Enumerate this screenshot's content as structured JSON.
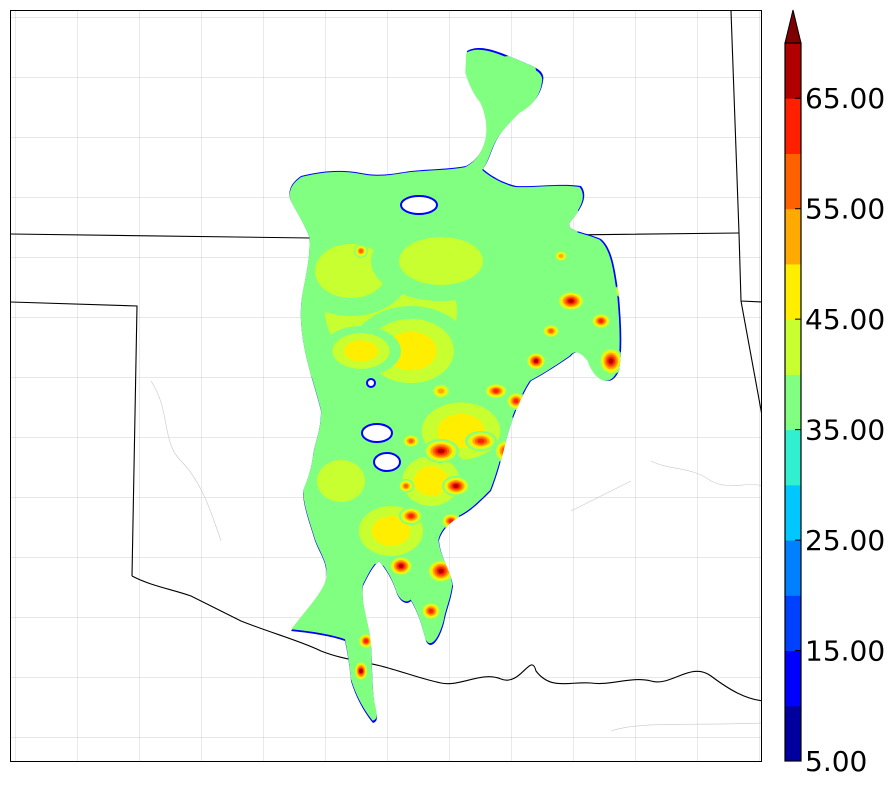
{
  "map": {
    "colorbar": {
      "levels": [
        5,
        10,
        15,
        20,
        25,
        30,
        35,
        40,
        45,
        50,
        55,
        60,
        65,
        70
      ],
      "colors": [
        "#00009f",
        "#0000ff",
        "#0040ff",
        "#0080ff",
        "#00c8ff",
        "#30f0d0",
        "#80ff80",
        "#c8ff30",
        "#ffee00",
        "#ffaa00",
        "#ff6000",
        "#ff2000",
        "#b00000"
      ],
      "extend_color": "#7f0000",
      "tick_labels": [
        "5.00",
        "15.00",
        "25.00",
        "35.00",
        "45.00",
        "55.00",
        "65.00"
      ]
    },
    "basemap": {
      "line_color": "#000000",
      "county_color": "#b8b8b8"
    }
  }
}
